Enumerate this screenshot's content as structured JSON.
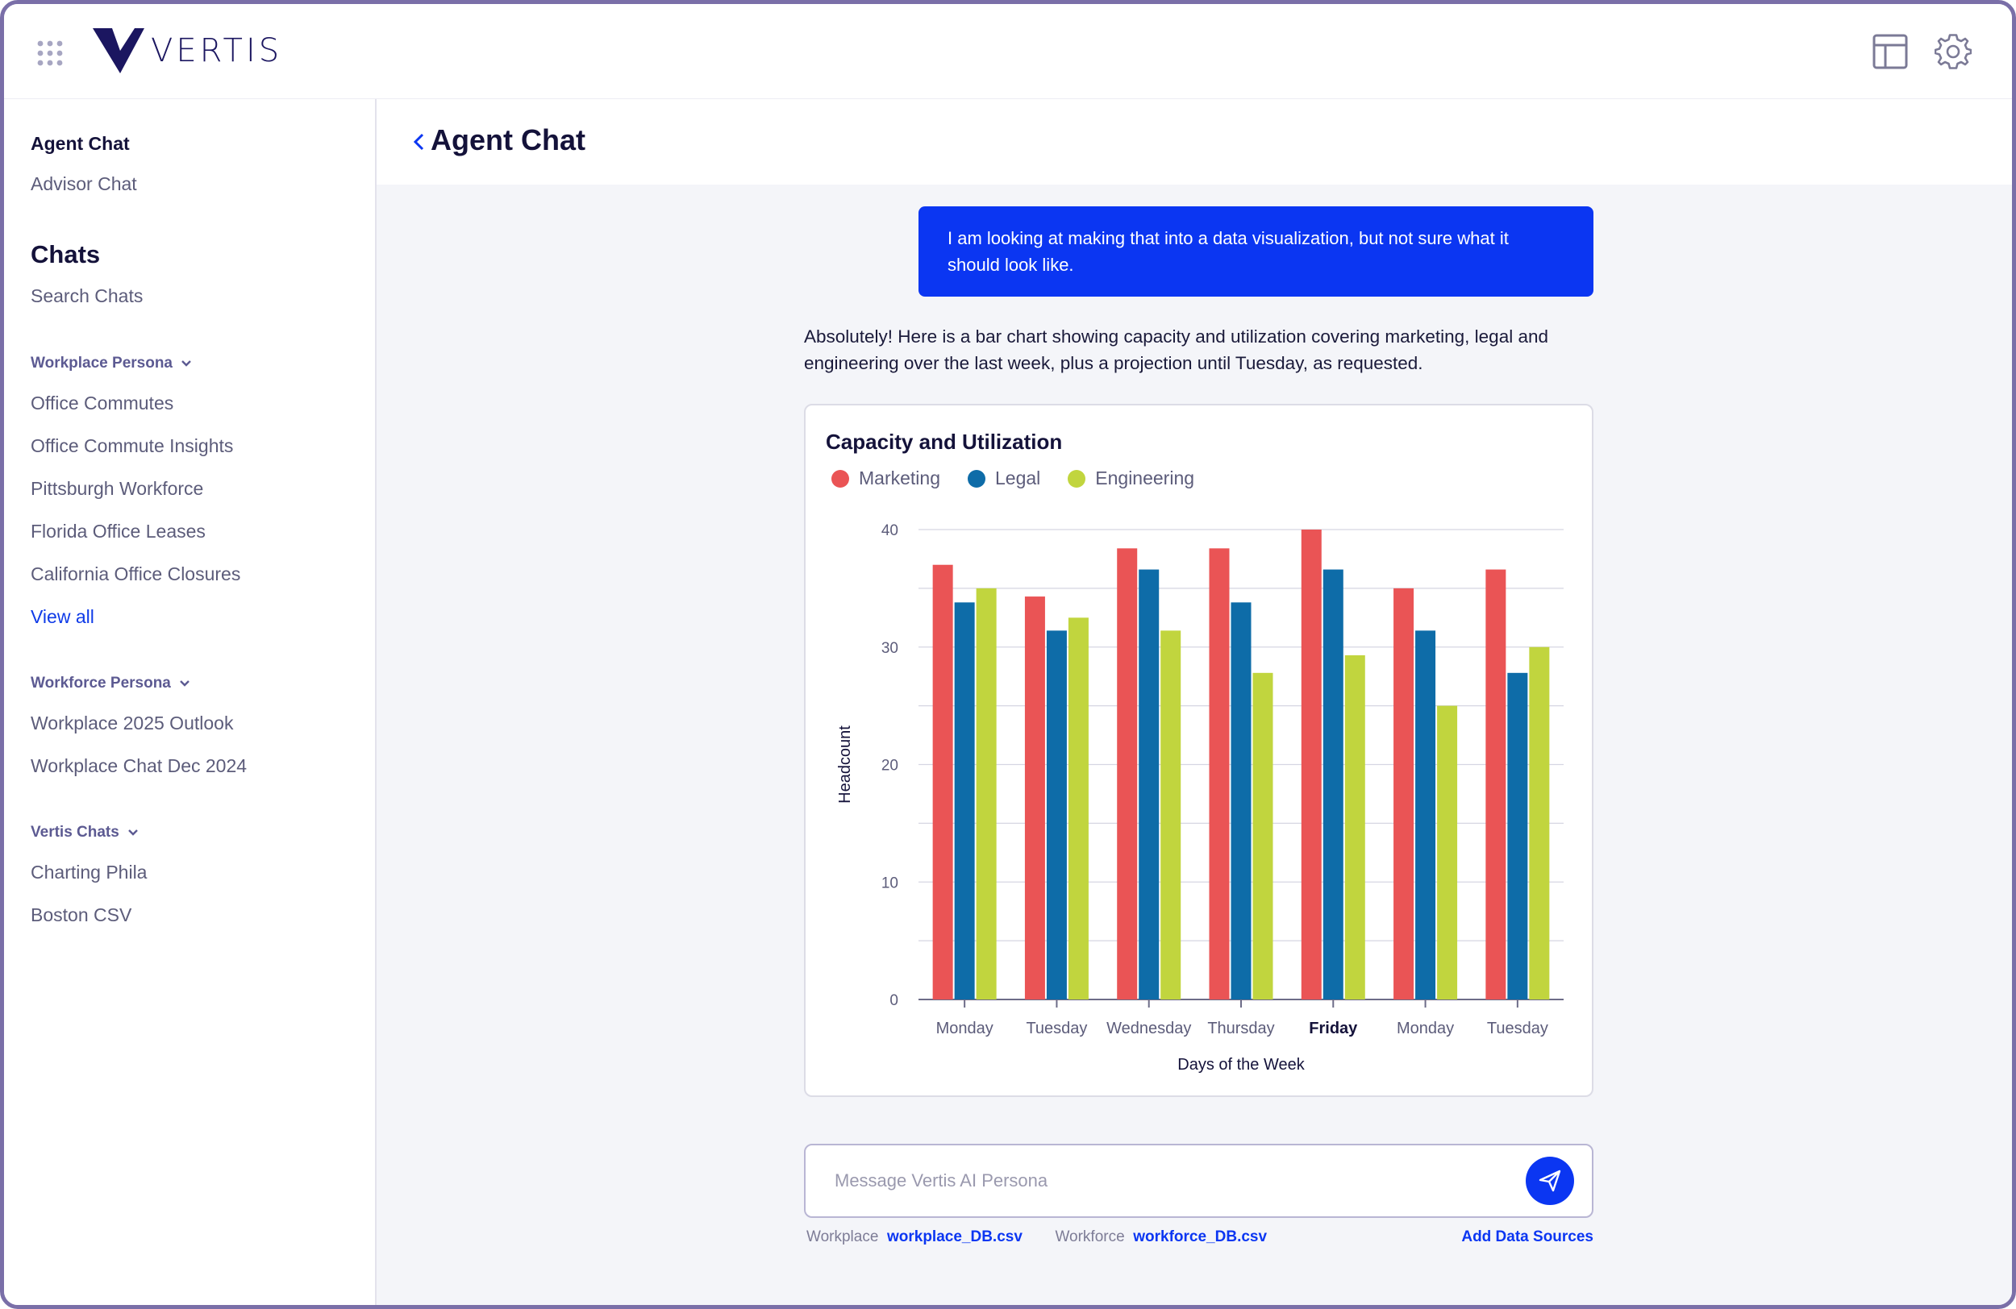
{
  "header": {
    "logo_text": "VERTIS",
    "icons": [
      "grid-dots-icon",
      "table-layout-icon",
      "settings-gear-icon"
    ]
  },
  "sidebar": {
    "top_items": [
      {
        "label": "Agent Chat",
        "active": true
      },
      {
        "label": "Advisor Chat",
        "active": false
      }
    ],
    "chats_heading": "Chats",
    "search_label": "Search Chats",
    "groups": [
      {
        "title": "Workplace Persona",
        "items": [
          "Office Commutes",
          "Office Commute Insights",
          "Pittsburgh Workforce",
          "Florida Office Leases",
          "California Office Closures"
        ],
        "link": "View all"
      },
      {
        "title": "Workforce Persona",
        "items": [
          "Workplace 2025 Outlook",
          "Workplace Chat Dec 2024"
        ]
      },
      {
        "title": "Vertis Chats",
        "items": [
          "Charting Phila",
          "Boston CSV"
        ]
      }
    ]
  },
  "main": {
    "title": "Agent Chat",
    "user_message": "I am looking at making that into a data visualization, but not sure what it should look like.",
    "assistant_message": "Absolutely! Here is a bar chart showing capacity and utilization covering marketing, legal and engineering over the last week, plus a projection until Tuesday, as requested.",
    "composer": {
      "placeholder": "Message Vertis AI Persona"
    },
    "sources": {
      "workplace_label": "Workplace",
      "workplace_file": "workplace_DB.csv",
      "workforce_label": "Workforce",
      "workforce_file": "workforce_DB.csv",
      "add_label": "Add Data Sources"
    }
  },
  "colors": {
    "accent": "#0b36f2",
    "marketing": "#ea5455",
    "legal": "#0e6ca8",
    "engineering": "#c1d53e"
  },
  "chart_data": {
    "type": "bar",
    "title": "Capacity and Utilization",
    "xlabel": "Days of the Week",
    "ylabel": "Headcount",
    "ylim": [
      0,
      40
    ],
    "yticks": [
      0,
      10,
      20,
      30,
      40
    ],
    "categories": [
      "Monday",
      "Tuesday",
      "Wednesday",
      "Thursday",
      "Friday",
      "Monday",
      "Tuesday"
    ],
    "highlight_category_index": 4,
    "grid": true,
    "legend_position": "top-left",
    "series": [
      {
        "name": "Marketing",
        "color": "#ea5455",
        "values": [
          37,
          34.3,
          38.4,
          38.4,
          40,
          35,
          36.6
        ]
      },
      {
        "name": "Legal",
        "color": "#0e6ca8",
        "values": [
          33.8,
          31.4,
          36.6,
          33.8,
          36.6,
          31.4,
          27.8
        ]
      },
      {
        "name": "Engineering",
        "color": "#c1d53e",
        "values": [
          35,
          32.5,
          31.4,
          27.8,
          29.3,
          25,
          30
        ]
      }
    ]
  }
}
